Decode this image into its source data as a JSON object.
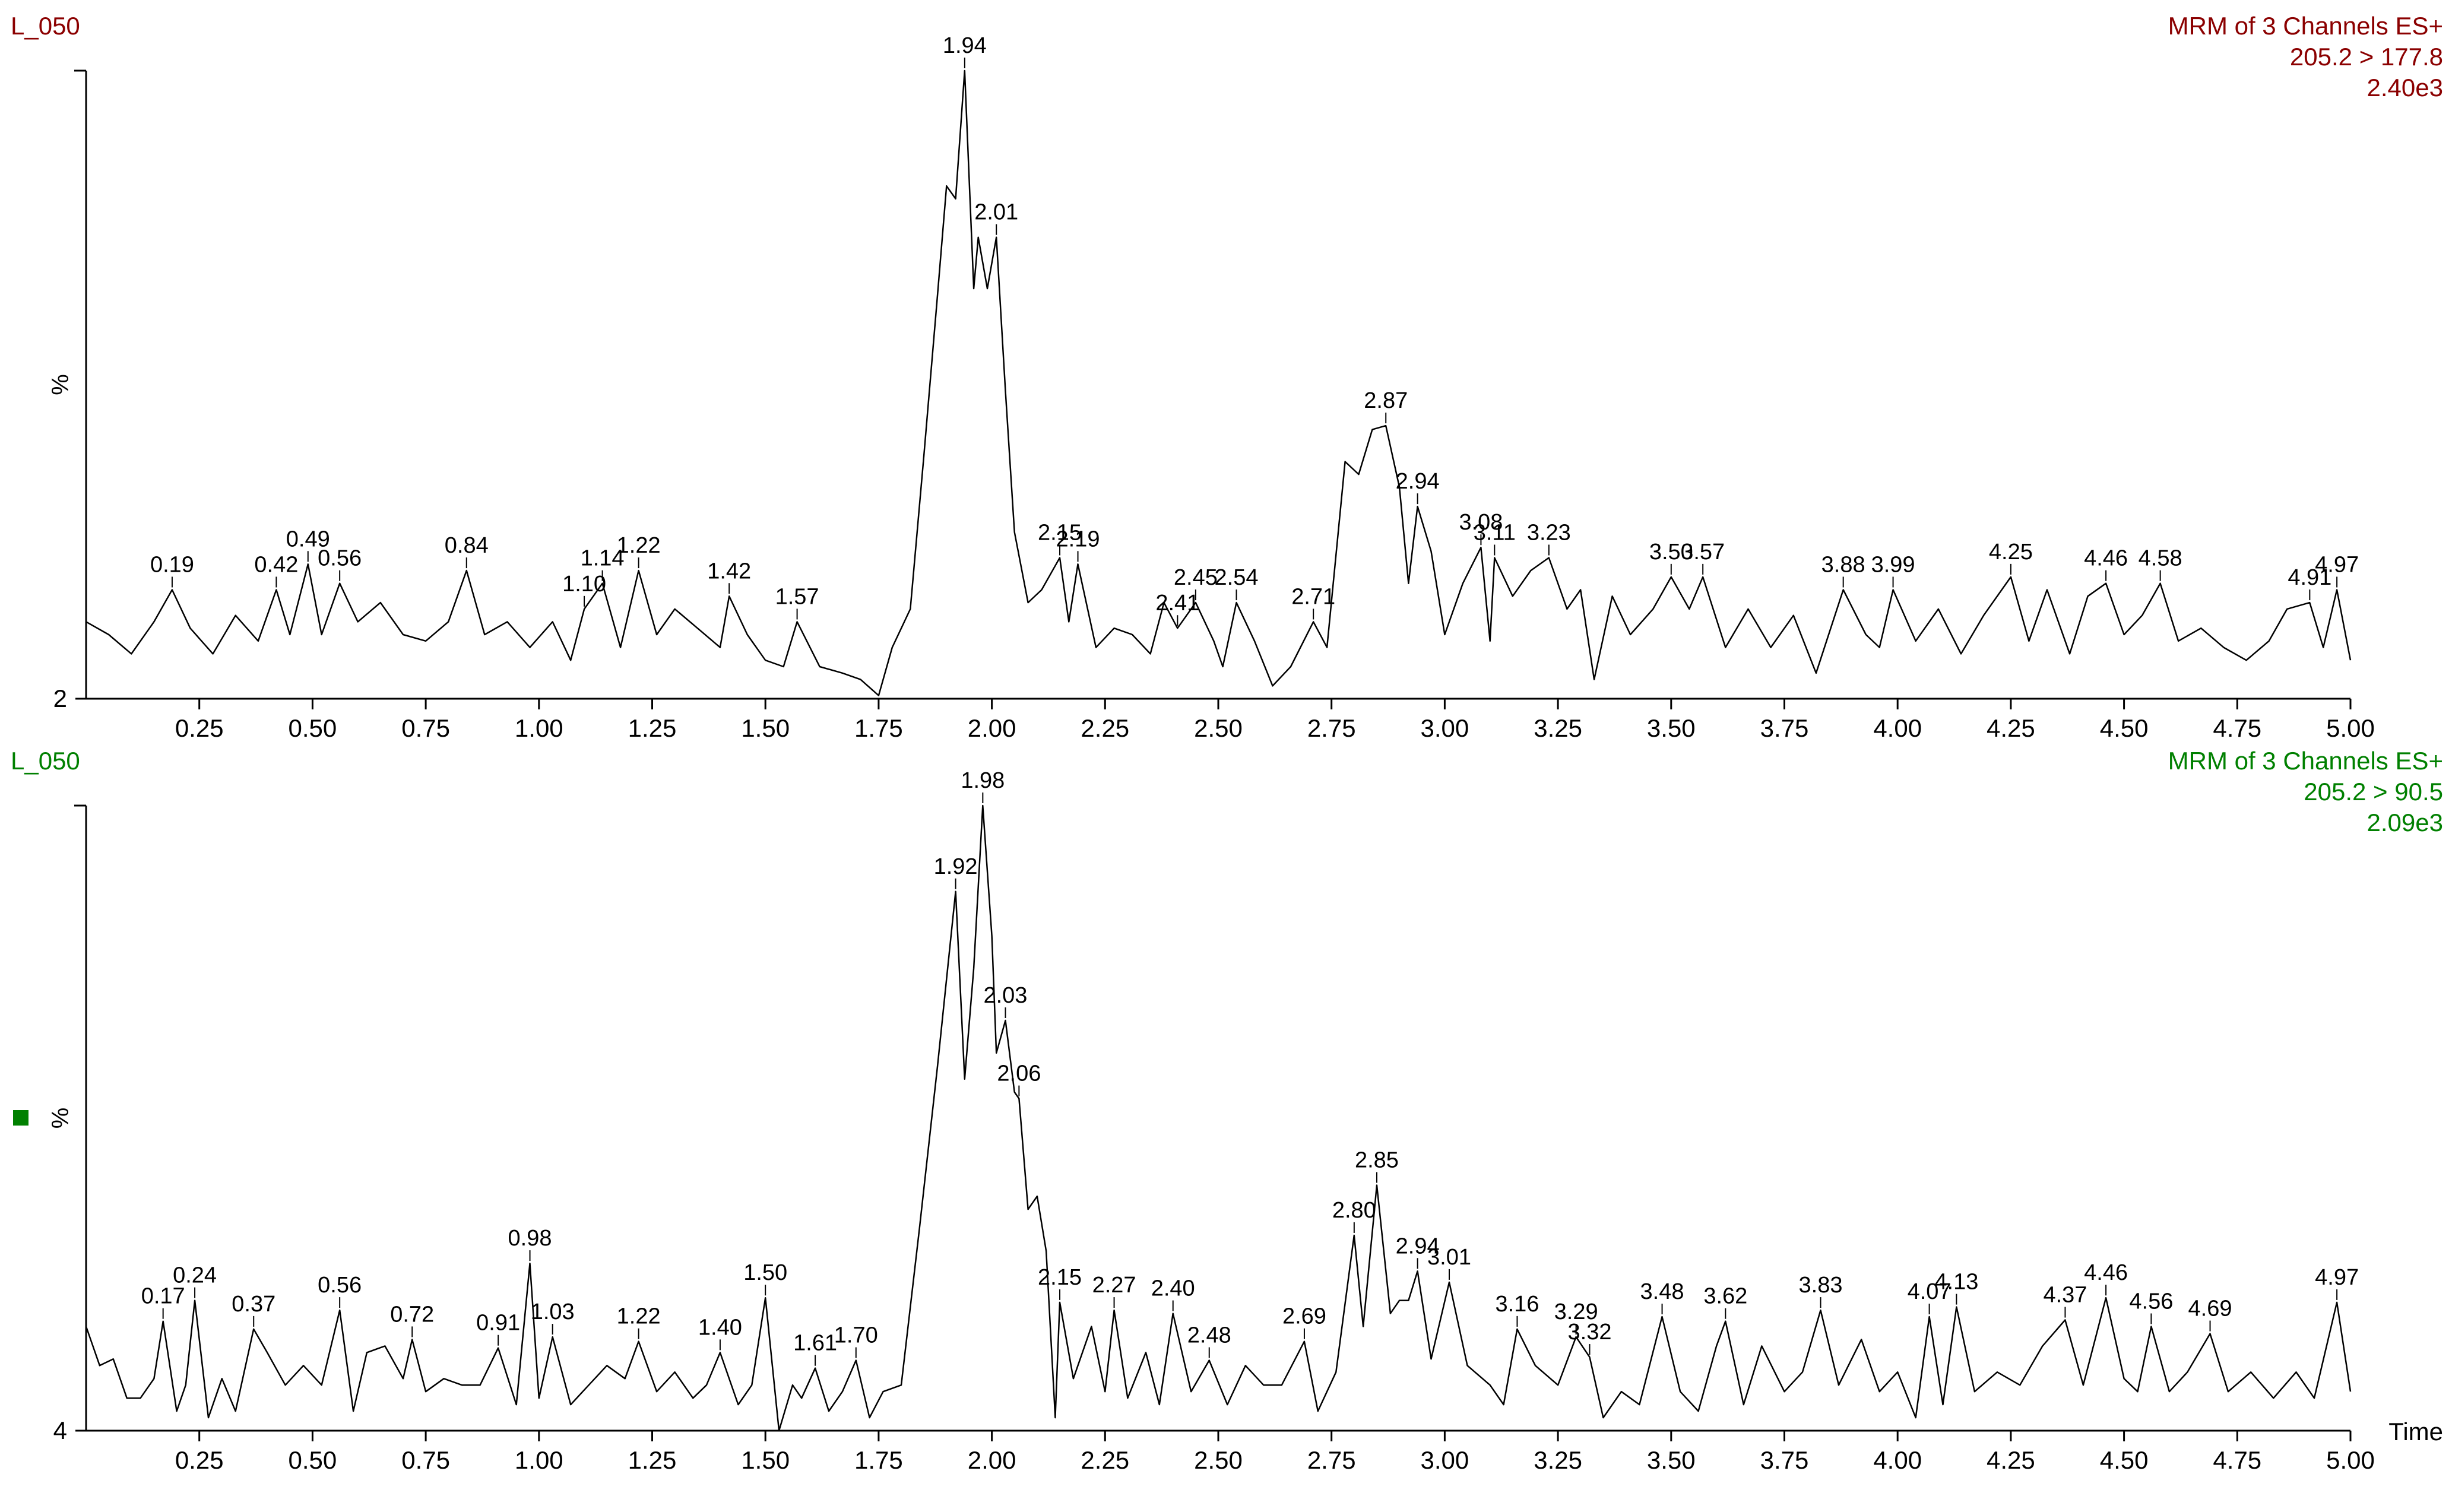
{
  "chart_data": [
    {
      "type": "line",
      "title": "L_050",
      "annotations": [
        "MRM of 3 Channels ES+",
        "205.2 > 177.8",
        "2.40e3"
      ],
      "color": "#8b0000",
      "line_color": "#000000",
      "ylabel": "%",
      "xlim": [
        0,
        5
      ],
      "ylim": [
        2,
        100
      ],
      "yticks": [
        2
      ],
      "xticks": [
        0.25,
        {
          "value": 0.5,
          "label": "0.50"
        },
        0.75,
        {
          "value": 1,
          "label": "1.00"
        },
        1.25,
        {
          "value": 1.5,
          "label": "1.50"
        },
        1.75,
        {
          "value": 2,
          "label": "2.00"
        },
        2.25,
        {
          "value": 2.5,
          "label": "2.50"
        },
        2.75,
        {
          "value": 3,
          "label": "3.00"
        },
        3.25,
        {
          "value": 3.5,
          "label": "3.50"
        },
        3.75,
        {
          "value": 4,
          "label": "4.00"
        },
        4.25,
        {
          "value": 4.5,
          "label": "4.50"
        },
        4.75,
        {
          "value": 5,
          "label": "5.00"
        }
      ],
      "x": [
        0,
        0.05,
        0.1,
        0.15,
        0.19,
        0.23,
        0.28,
        0.33,
        0.38,
        0.42,
        0.45,
        0.49,
        0.52,
        0.56,
        0.6,
        0.65,
        0.7,
        0.75,
        0.8,
        0.84,
        0.88,
        0.93,
        0.98,
        1.03,
        1.07,
        1.1,
        1.14,
        1.18,
        1.22,
        1.26,
        1.3,
        1.35,
        1.4,
        1.42,
        1.46,
        1.5,
        1.54,
        1.57,
        1.62,
        1.67,
        1.71,
        1.75,
        1.78,
        1.82,
        1.85,
        1.88,
        1.9,
        1.92,
        1.94,
        1.96,
        1.97,
        1.99,
        2.01,
        2.03,
        2.05,
        2.08,
        2.11,
        2.15,
        2.17,
        2.19,
        2.23,
        2.27,
        2.31,
        2.35,
        2.38,
        2.41,
        2.45,
        2.49,
        2.51,
        2.54,
        2.58,
        2.62,
        2.66,
        2.71,
        2.74,
        2.78,
        2.81,
        2.84,
        2.87,
        2.9,
        2.92,
        2.94,
        2.97,
        3.0,
        3.04,
        3.08,
        3.1,
        3.11,
        3.15,
        3.19,
        3.23,
        3.27,
        3.3,
        3.33,
        3.37,
        3.41,
        3.46,
        3.5,
        3.54,
        3.57,
        3.62,
        3.67,
        3.72,
        3.77,
        3.82,
        3.88,
        3.93,
        3.96,
        3.99,
        4.04,
        4.09,
        4.14,
        4.19,
        4.25,
        4.29,
        4.33,
        4.38,
        4.42,
        4.46,
        4.5,
        4.54,
        4.58,
        4.62,
        4.67,
        4.72,
        4.77,
        4.82,
        4.86,
        4.91,
        4.94,
        4.97,
        5.0
      ],
      "values": [
        14,
        12,
        9,
        14,
        19,
        13,
        9,
        15,
        11,
        19,
        12,
        23,
        12,
        20,
        14,
        17,
        12,
        11,
        14,
        22,
        12,
        14,
        10,
        14,
        8,
        16,
        20,
        10,
        22,
        12,
        16,
        13,
        10,
        18,
        12,
        8,
        7,
        14,
        7,
        6,
        5,
        2.5,
        10,
        16,
        40,
        65,
        82,
        80,
        100,
        66,
        74,
        66,
        74,
        50,
        28,
        17,
        19,
        24,
        14,
        23,
        10,
        13,
        12,
        9,
        17,
        13,
        17,
        11,
        7,
        17,
        11,
        4,
        7,
        14,
        10,
        39,
        37,
        44,
        44.6,
        35,
        20,
        32,
        25,
        12,
        20,
        25.6,
        11,
        24,
        18,
        22,
        24,
        16,
        19,
        5,
        18,
        12,
        16,
        21,
        16,
        21,
        10,
        16,
        10,
        15,
        6,
        19,
        12,
        10,
        19,
        11,
        16,
        9,
        15,
        21,
        11,
        19,
        9,
        18,
        20,
        12,
        15,
        20,
        11,
        13,
        10,
        8,
        11,
        16,
        17,
        10,
        19,
        8
      ],
      "peak_labels": [
        0.19,
        0.42,
        0.49,
        0.56,
        0.84,
        {
          "value": 1.1,
          "label": "1.10"
        },
        1.14,
        1.22,
        1.42,
        1.57,
        1.94,
        2.01,
        2.15,
        2.19,
        2.41,
        2.45,
        2.54,
        2.71,
        2.87,
        2.94,
        3.08,
        3.11,
        3.23,
        {
          "value": 3.5,
          "label": "3.50"
        },
        3.57,
        3.88,
        3.99,
        4.25,
        4.46,
        4.58,
        4.91,
        4.97
      ]
    },
    {
      "type": "line",
      "title": "L_050",
      "annotations": [
        "MRM of 3 Channels ES+",
        "205.2 > 90.5",
        "2.09e3"
      ],
      "color": "#008000",
      "line_color": "#000000",
      "ylabel": "%",
      "xlabel": "Time",
      "xlim": [
        0,
        5
      ],
      "ylim": [
        4,
        100
      ],
      "yticks": [
        4
      ],
      "xticks": [
        0.25,
        {
          "value": 0.5,
          "label": "0.50"
        },
        0.75,
        {
          "value": 1,
          "label": "1.00"
        },
        1.25,
        {
          "value": 1.5,
          "label": "1.50"
        },
        1.75,
        {
          "value": 2,
          "label": "2.00"
        },
        2.25,
        {
          "value": 2.5,
          "label": "2.50"
        },
        2.75,
        {
          "value": 3,
          "label": "3.00"
        },
        3.25,
        {
          "value": 3.5,
          "label": "3.50"
        },
        3.75,
        {
          "value": 4,
          "label": "4.00"
        },
        4.25,
        {
          "value": 4.5,
          "label": "4.50"
        },
        4.75,
        {
          "value": 5,
          "label": "5.00"
        }
      ],
      "x": [
        0,
        0.03,
        0.06,
        0.09,
        0.12,
        0.15,
        0.17,
        0.2,
        0.22,
        0.24,
        0.27,
        0.3,
        0.33,
        0.37,
        0.4,
        0.44,
        0.48,
        0.52,
        0.56,
        0.59,
        0.62,
        0.66,
        0.7,
        0.72,
        0.75,
        0.79,
        0.83,
        0.87,
        0.91,
        0.95,
        0.98,
        1.0,
        1.03,
        1.07,
        1.11,
        1.15,
        1.19,
        1.22,
        1.26,
        1.3,
        1.34,
        1.37,
        1.4,
        1.44,
        1.47,
        1.5,
        1.53,
        1.56,
        1.58,
        1.61,
        1.64,
        1.67,
        1.7,
        1.73,
        1.76,
        1.8,
        1.84,
        1.88,
        1.92,
        1.94,
        1.96,
        1.98,
        2.0,
        2.01,
        2.03,
        2.05,
        2.06,
        2.08,
        2.1,
        2.12,
        2.14,
        2.15,
        2.18,
        2.22,
        2.25,
        2.27,
        2.3,
        2.34,
        2.37,
        2.4,
        2.44,
        2.48,
        2.52,
        2.56,
        2.6,
        2.64,
        2.69,
        2.72,
        2.76,
        2.8,
        2.82,
        2.85,
        2.88,
        2.9,
        2.92,
        2.94,
        2.97,
        3.01,
        3.05,
        3.1,
        3.13,
        3.16,
        3.2,
        3.25,
        3.29,
        3.32,
        3.35,
        3.39,
        3.43,
        3.48,
        3.52,
        3.56,
        3.6,
        3.62,
        3.66,
        3.7,
        3.75,
        3.79,
        3.83,
        3.87,
        3.92,
        3.96,
        4.0,
        4.04,
        4.07,
        4.1,
        4.13,
        4.17,
        4.22,
        4.27,
        4.32,
        4.37,
        4.41,
        4.46,
        4.5,
        4.53,
        4.56,
        4.6,
        4.64,
        4.69,
        4.73,
        4.78,
        4.83,
        4.88,
        4.92,
        4.97,
        5.0
      ],
      "values": [
        20,
        14,
        15,
        9,
        9,
        12,
        20.8,
        7,
        11,
        24,
        6,
        12,
        7,
        19.6,
        16,
        11,
        14,
        11,
        22.5,
        7,
        16,
        17,
        12,
        18,
        10,
        12,
        11,
        11,
        16.7,
        8,
        29.7,
        9,
        18.4,
        8,
        11,
        14,
        12,
        17.7,
        10,
        13,
        9,
        11,
        16,
        8,
        11,
        24.4,
        4,
        11,
        9,
        13.6,
        7,
        10,
        14.8,
        6,
        10,
        11,
        35,
        60,
        86.8,
        58,
        75,
        100,
        80,
        62,
        67,
        56,
        55,
        38,
        40,
        31.6,
        6,
        23.7,
        12,
        20,
        10,
        22.5,
        9,
        16,
        8,
        22,
        10,
        14.8,
        8,
        14,
        11,
        11,
        17.7,
        7,
        13,
        34,
        20,
        41.7,
        22,
        24,
        24,
        28.5,
        15,
        26.8,
        14,
        11,
        8,
        19.6,
        14,
        11,
        18.4,
        15.3,
        6,
        10,
        8,
        21.5,
        10,
        7,
        17,
        20.8,
        8,
        17,
        10,
        13,
        22.5,
        11,
        18,
        10,
        13,
        6,
        21.5,
        8,
        23,
        10,
        13,
        11,
        17,
        21,
        11,
        24.4,
        12,
        10,
        20,
        10,
        13,
        18.9,
        10,
        13,
        9,
        13,
        9,
        23.7,
        10
      ],
      "peak_labels": [
        0.17,
        0.24,
        0.37,
        0.56,
        0.72,
        0.91,
        0.98,
        1.03,
        1.22,
        {
          "value": 1.4,
          "label": "1.40"
        },
        {
          "value": 1.5,
          "label": "1.50"
        },
        1.61,
        {
          "value": 1.7,
          "label": "1.70"
        },
        1.92,
        1.98,
        2.03,
        2.06,
        2.15,
        2.27,
        {
          "value": 2.4,
          "label": "2.40"
        },
        2.48,
        2.69,
        {
          "value": 2.8,
          "label": "2.80"
        },
        2.85,
        2.94,
        3.01,
        3.16,
        3.29,
        3.32,
        3.48,
        3.62,
        3.83,
        4.07,
        4.13,
        4.37,
        4.46,
        4.56,
        4.69,
        4.97
      ]
    }
  ]
}
